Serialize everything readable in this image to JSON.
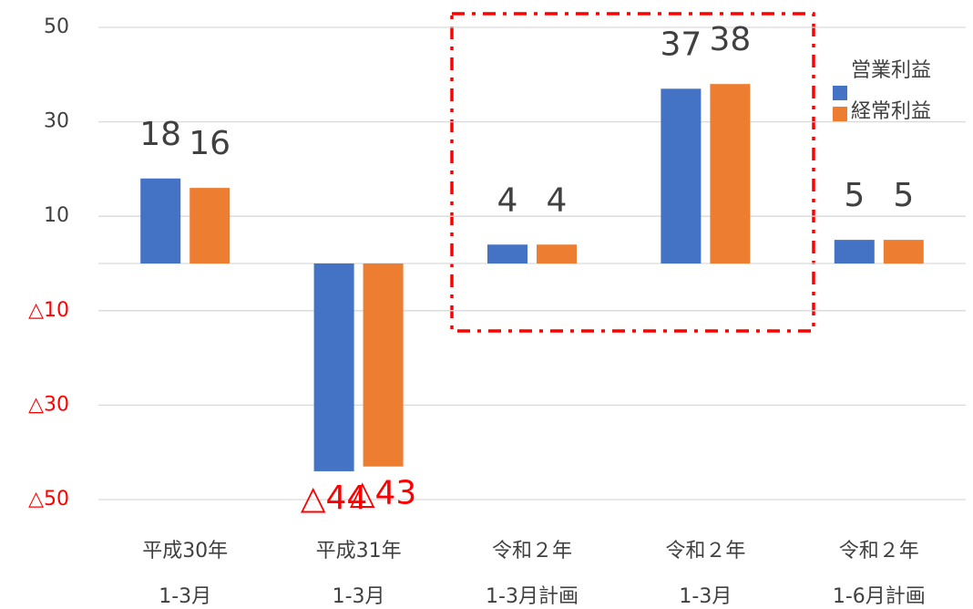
{
  "chart_data": {
    "type": "bar",
    "categories": [
      [
        "平成30年",
        "1-3月"
      ],
      [
        "平成31年",
        "1-3月"
      ],
      [
        "令和２年",
        "1-3月計画"
      ],
      [
        "令和２年",
        "1-3月"
      ],
      [
        "令和２年",
        "1-6月計画"
      ]
    ],
    "series": [
      {
        "name": "営業利益",
        "color": "#4472c4",
        "values": [
          18,
          -44,
          4,
          37,
          5
        ],
        "value_labels": [
          "18",
          "△44",
          "4",
          "37",
          "5"
        ]
      },
      {
        "name": "経常利益",
        "color": "#ed7d31",
        "values": [
          16,
          -43,
          4,
          38,
          5
        ],
        "value_labels": [
          "16",
          "△43",
          "4",
          "38",
          "5"
        ]
      }
    ],
    "ylim": [
      -50,
      50
    ],
    "yticks": [
      50,
      30,
      10,
      {
        "value": -10,
        "label": "△10"
      },
      {
        "value": -30,
        "label": "△30"
      },
      {
        "value": -50,
        "label": "△50"
      }
    ],
    "grid": true,
    "negative_color": "#ff0000",
    "legend": "right"
  }
}
